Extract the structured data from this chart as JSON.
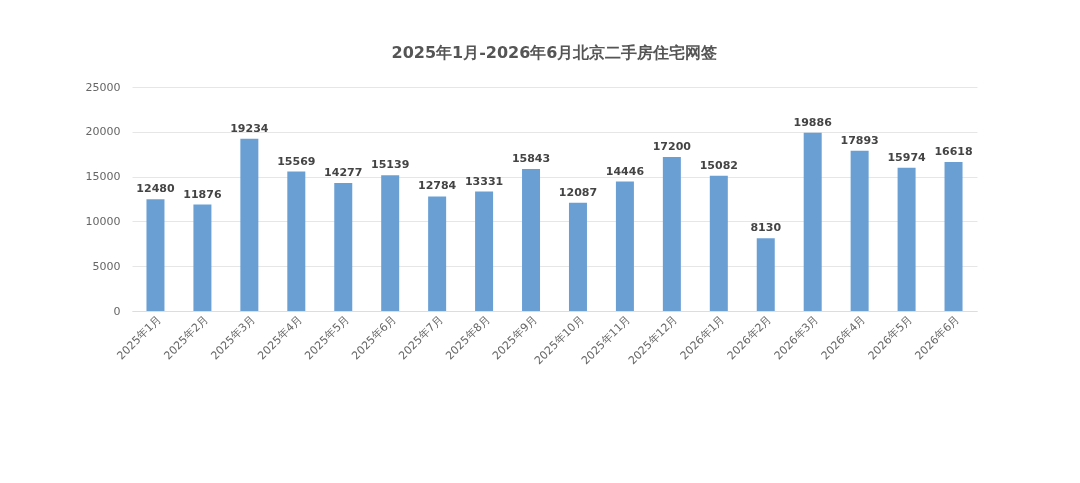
{
  "chart_data": {
    "type": "bar",
    "title": "2025年1月-2026年6月北京二手房住宅网签",
    "categories": [
      "2025年1月",
      "2025年2月",
      "2025年3月",
      "2025年4月",
      "2025年5月",
      "2025年6月",
      "2025年7月",
      "2025年8月",
      "2025年9月",
      "2025年10月",
      "2025年11月",
      "2025年12月",
      "2026年1月",
      "2026年2月",
      "2026年3月",
      "2026年4月",
      "2026年5月",
      "2026年6月"
    ],
    "values": [
      12480,
      11876,
      19234,
      15569,
      14277,
      15139,
      12784,
      13331,
      15843,
      12087,
      14446,
      17200,
      15082,
      8130,
      19886,
      17893,
      15974,
      16618
    ],
    "color": "#6a9fd4",
    "ylim": [
      0,
      25000
    ],
    "yticks": [
      0,
      5000,
      10000,
      15000,
      20000,
      25000
    ],
    "grid": "y",
    "data_labels": true
  }
}
